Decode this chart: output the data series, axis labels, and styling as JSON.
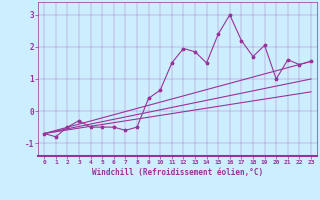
{
  "title": "",
  "xlabel": "Windchill (Refroidissement éolien,°C)",
  "ylabel": "",
  "background_color": "#cceeff",
  "line_color": "#993399",
  "xlim": [
    -0.5,
    23.5
  ],
  "ylim": [
    -1.4,
    3.4
  ],
  "xticks": [
    0,
    1,
    2,
    3,
    4,
    5,
    6,
    7,
    8,
    9,
    10,
    11,
    12,
    13,
    14,
    15,
    16,
    17,
    18,
    19,
    20,
    21,
    22,
    23
  ],
  "yticks": [
    -1,
    0,
    1,
    2,
    3
  ],
  "grid": true,
  "series": [
    {
      "x": [
        0,
        1,
        2,
        3,
        4,
        5,
        6,
        7,
        8,
        9,
        10,
        11,
        12,
        13,
        14,
        15,
        16,
        17,
        18,
        19,
        20,
        21,
        22,
        23
      ],
      "y": [
        -0.7,
        -0.8,
        -0.5,
        -0.3,
        -0.5,
        -0.5,
        -0.5,
        -0.6,
        -0.5,
        0.4,
        0.65,
        1.5,
        1.95,
        1.85,
        1.5,
        2.4,
        3.0,
        2.2,
        1.7,
        2.05,
        1.0,
        1.6,
        1.45,
        1.55
      ],
      "marker": true
    },
    {
      "x": [
        0,
        23
      ],
      "y": [
        -0.7,
        1.55
      ],
      "marker": false
    },
    {
      "x": [
        0,
        23
      ],
      "y": [
        -0.7,
        1.0
      ],
      "marker": false
    },
    {
      "x": [
        0,
        23
      ],
      "y": [
        -0.7,
        0.6
      ],
      "marker": false
    }
  ]
}
